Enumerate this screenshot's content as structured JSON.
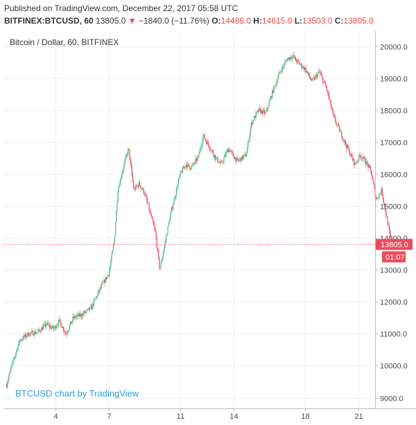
{
  "header": {
    "published": "Published on TradingView.com, December 22, 2017 05:58 UTC",
    "symbol": "BITFINEX:BTCUSD, 60",
    "last": "13805.0",
    "change": "−1840.0 (−11.76%)",
    "o_label": "O:",
    "o_value": "14486.0",
    "h_label": "H:",
    "h_value": "14615.0",
    "l_label": "L:",
    "l_value": "13503.0",
    "c_label": "C:",
    "c_value": "13805.0",
    "down_arrow": "▼"
  },
  "colors": {
    "up": "#53b987",
    "down": "#eb4d5c",
    "grid": "#eef0f3",
    "price_line": "#eb4d5c",
    "credit": "#2d9fd9"
  },
  "chart_data": {
    "type": "candlestick",
    "title": "Bitcoin / Dollar, 60, BITFINEX",
    "credit": "BTCUSD chart by TradingView",
    "ylim": [
      8800,
      20400
    ],
    "y_ticks": [
      9000,
      10000,
      11000,
      12000,
      13000,
      14000,
      15000,
      16000,
      17000,
      18000,
      19000,
      20000
    ],
    "y_tick_labels": [
      "9000.0",
      "10000.0",
      "11000.0",
      "12000.0",
      "13000.0",
      "14000.0",
      "15000.0",
      "16000.0",
      "17000.0",
      "18000.0",
      "19000.0",
      "20000.0"
    ],
    "x_ticks": [
      4,
      7,
      11,
      14,
      18,
      21
    ],
    "x_tick_labels": [
      "4",
      "7",
      "11",
      "14",
      "18",
      "21"
    ],
    "x_range_days": [
      1.2,
      23.3
    ],
    "current_price": 13805.0,
    "current_price_label": "13805.0",
    "countdown_label": "01:07",
    "grid": true,
    "price_path": [
      [
        1.25,
        9400
      ],
      [
        1.6,
        10100
      ],
      [
        2.0,
        10800
      ],
      [
        2.5,
        11000
      ],
      [
        3.0,
        11050
      ],
      [
        3.5,
        11300
      ],
      [
        3.9,
        11150
      ],
      [
        4.2,
        11400
      ],
      [
        4.6,
        11000
      ],
      [
        5.0,
        11500
      ],
      [
        5.5,
        11600
      ],
      [
        6.0,
        11800
      ],
      [
        6.5,
        12400
      ],
      [
        7.0,
        12900
      ],
      [
        7.3,
        13900
      ],
      [
        7.5,
        15500
      ],
      [
        7.8,
        16200
      ],
      [
        8.1,
        16800
      ],
      [
        8.4,
        15500
      ],
      [
        8.7,
        15700
      ],
      [
        9.0,
        15400
      ],
      [
        9.3,
        14800
      ],
      [
        9.6,
        14200
      ],
      [
        9.85,
        13000
      ],
      [
        10.1,
        13700
      ],
      [
        10.4,
        14600
      ],
      [
        10.7,
        15300
      ],
      [
        11.0,
        16000
      ],
      [
        11.3,
        16300
      ],
      [
        11.6,
        16200
      ],
      [
        12.0,
        16500
      ],
      [
        12.3,
        17200
      ],
      [
        12.7,
        16800
      ],
      [
        13.0,
        16500
      ],
      [
        13.3,
        16300
      ],
      [
        13.7,
        16800
      ],
      [
        14.2,
        16400
      ],
      [
        14.7,
        16600
      ],
      [
        15.0,
        17600
      ],
      [
        15.4,
        18000
      ],
      [
        15.8,
        17900
      ],
      [
        16.2,
        18600
      ],
      [
        16.6,
        19200
      ],
      [
        17.0,
        19600
      ],
      [
        17.3,
        19700
      ],
      [
        17.6,
        19500
      ],
      [
        18.0,
        19300
      ],
      [
        18.4,
        18900
      ],
      [
        18.8,
        19200
      ],
      [
        19.2,
        18700
      ],
      [
        19.6,
        17800
      ],
      [
        20.0,
        17300
      ],
      [
        20.4,
        16800
      ],
      [
        20.8,
        16300
      ],
      [
        21.1,
        16600
      ],
      [
        21.4,
        16400
      ],
      [
        21.7,
        16100
      ],
      [
        22.0,
        15200
      ],
      [
        22.3,
        15500
      ],
      [
        22.6,
        14600
      ],
      [
        22.85,
        13805
      ]
    ]
  }
}
